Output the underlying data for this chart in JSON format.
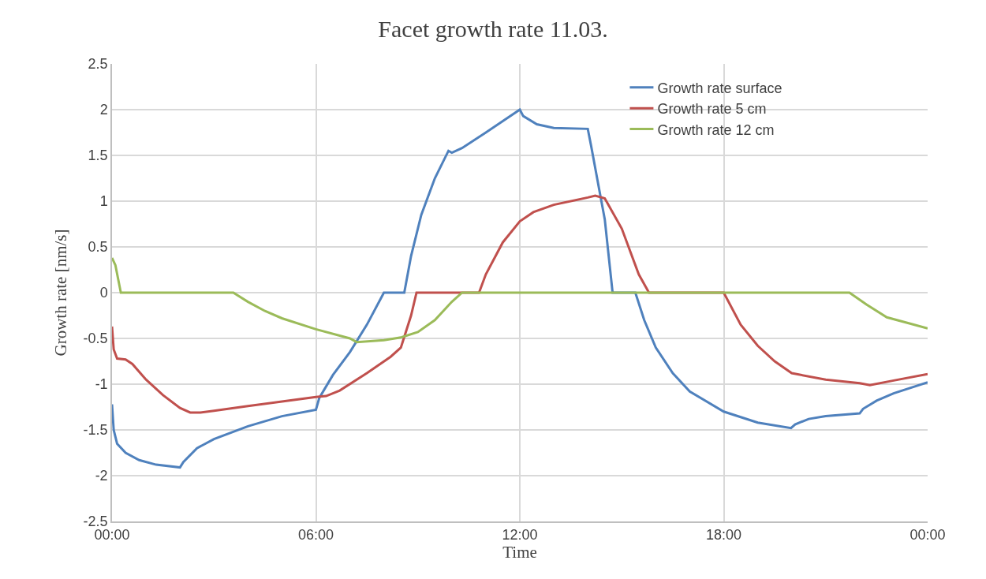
{
  "chart_data": {
    "type": "line",
    "title": "Facet growth rate 11.03.",
    "xlabel": "Time",
    "ylabel": "Growth rate [nm/s]",
    "xlim": [
      0,
      24
    ],
    "xticks": [
      {
        "value": 0,
        "label": "00:00"
      },
      {
        "value": 6,
        "label": "06:00"
      },
      {
        "value": 12,
        "label": "12:00"
      },
      {
        "value": 18,
        "label": "18:00"
      },
      {
        "value": 24,
        "label": "00:00"
      }
    ],
    "ylim": [
      -2.5,
      2.5
    ],
    "yticks": [
      -2.5,
      -2,
      -1.5,
      -1,
      -0.5,
      0,
      0.5,
      1,
      1.5,
      2,
      2.5
    ],
    "grid": true,
    "legend": "top right",
    "marker": "none",
    "line_style": "solid",
    "series": [
      {
        "name": "Growth rate surface",
        "color": "#4f81bd",
        "x": [
          0,
          0.05,
          0.15,
          0.4,
          0.8,
          1.3,
          2.0,
          2.1,
          2.5,
          3,
          4,
          5,
          6,
          6.1,
          6.5,
          7,
          7.5,
          8.0,
          8.6,
          8.8,
          9.1,
          9.5,
          9.9,
          10.0,
          10.3,
          11,
          12,
          12.1,
          12.5,
          13,
          14.0,
          14.1,
          14.5,
          14.73,
          15.4,
          15.66,
          16,
          16.5,
          17,
          18,
          19,
          19.98,
          20.1,
          20.5,
          21,
          22,
          22.1,
          22.5,
          23,
          24
        ],
        "values": [
          -1.22,
          -1.5,
          -1.65,
          -1.75,
          -1.83,
          -1.88,
          -1.91,
          -1.85,
          -1.7,
          -1.6,
          -1.46,
          -1.35,
          -1.28,
          -1.15,
          -0.9,
          -0.65,
          -0.35,
          0,
          0,
          0.4,
          0.85,
          1.25,
          1.55,
          1.53,
          1.58,
          1.75,
          2.0,
          1.93,
          1.84,
          1.8,
          1.79,
          1.6,
          0.8,
          0,
          0,
          -0.3,
          -0.6,
          -0.88,
          -1.08,
          -1.3,
          -1.42,
          -1.48,
          -1.44,
          -1.38,
          -1.35,
          -1.32,
          -1.27,
          -1.18,
          -1.1,
          -0.98
        ]
      },
      {
        "name": "Growth rate 5 cm",
        "color": "#c0504d",
        "x": [
          0,
          0.05,
          0.15,
          0.4,
          0.6,
          1,
          1.5,
          2,
          2.3,
          2.6,
          3,
          4,
          5,
          6,
          6.3,
          6.7,
          7.5,
          8.2,
          8.5,
          8.8,
          8.96,
          10.8,
          11,
          11.5,
          12,
          12.4,
          13,
          14,
          14.22,
          14.5,
          15,
          15.5,
          15.8,
          18,
          18.5,
          19,
          19.5,
          20,
          21,
          22,
          22.3,
          23,
          24
        ],
        "values": [
          -0.37,
          -0.62,
          -0.72,
          -0.73,
          -0.78,
          -0.95,
          -1.12,
          -1.26,
          -1.31,
          -1.31,
          -1.29,
          -1.24,
          -1.19,
          -1.14,
          -1.13,
          -1.07,
          -0.88,
          -0.7,
          -0.6,
          -0.25,
          0,
          0,
          0.2,
          0.55,
          0.78,
          0.88,
          0.96,
          1.04,
          1.06,
          1.03,
          0.7,
          0.2,
          0,
          0,
          -0.35,
          -0.58,
          -0.75,
          -0.88,
          -0.95,
          -0.99,
          -1.01,
          -0.96,
          -0.89
        ]
      },
      {
        "name": "Growth rate 12 cm",
        "color": "#9bbb59",
        "x": [
          0,
          0.1,
          0.26,
          3.57,
          4,
          4.5,
          5,
          6,
          7,
          7.2,
          8,
          8.5,
          9,
          9.5,
          10.0,
          10.3,
          21.7,
          22.2,
          22.8,
          23.4,
          24
        ],
        "values": [
          0.38,
          0.3,
          0,
          0,
          -0.1,
          -0.2,
          -0.28,
          -0.4,
          -0.5,
          -0.54,
          -0.52,
          -0.49,
          -0.43,
          -0.3,
          -0.1,
          0,
          0,
          -0.13,
          -0.27,
          -0.33,
          -0.39
        ]
      }
    ]
  }
}
